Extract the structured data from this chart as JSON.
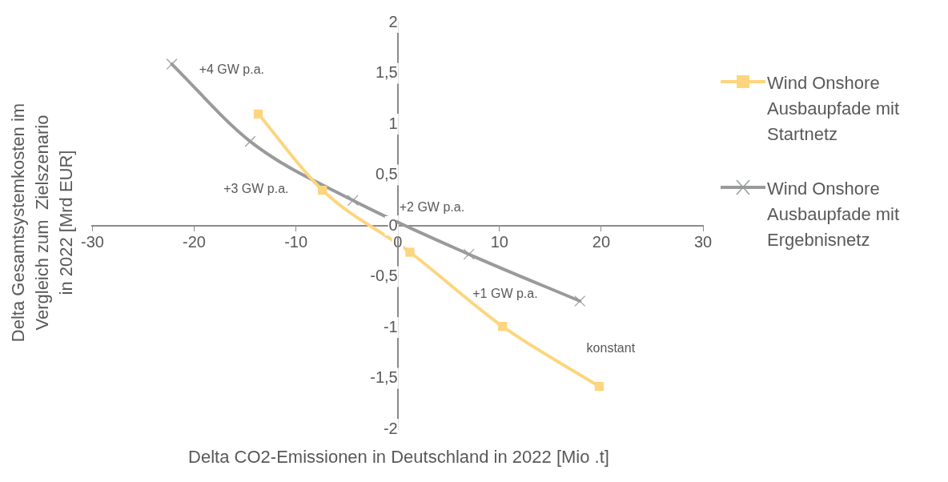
{
  "chart_data": {
    "type": "line",
    "xlabel": "Delta CO2-Emissionen in Deutschland in 2022 [Mio .t]",
    "ylabel": "Delta Gesamtsystemkosten im\nVergleich zum  Zielszenario\nin 2022 [Mrd EUR]",
    "xlim": [
      -30,
      30
    ],
    "xticks": [
      -30,
      -20,
      -10,
      0,
      10,
      20,
      30
    ],
    "ylim": [
      -2,
      2
    ],
    "yticks": [
      {
        "value": -2,
        "label": "-2"
      },
      {
        "value": -1.5,
        "label": "-1,5"
      },
      {
        "value": -1,
        "label": "-1"
      },
      {
        "value": -0.5,
        "label": "-0,5"
      },
      {
        "value": 0,
        "label": "0"
      },
      {
        "value": 0.5,
        "label": "0,5"
      },
      {
        "value": 1,
        "label": "1"
      },
      {
        "value": 1.5,
        "label": "1,5"
      },
      {
        "value": 2,
        "label": "2"
      }
    ],
    "series": [
      {
        "name": "Wind Onshore Ausbaupfade mit Startnetz",
        "color": "#fdd57e",
        "marker": "square",
        "x": [
          -13.7,
          -7.4,
          1.2,
          10.3,
          19.8
        ],
        "values": [
          1.1,
          0.35,
          -0.26,
          -0.99,
          -1.58
        ]
      },
      {
        "name": "Wind Onshore Ausbaupfade mit Ergebnisnetz",
        "color": "#999b9b",
        "marker": "cross",
        "x": [
          -22.2,
          -14.5,
          -4.4,
          7.0,
          17.9
        ],
        "values": [
          1.59,
          0.83,
          0.25,
          -0.28,
          -0.74
        ]
      }
    ],
    "annotations": [
      "+4 GW p.a.",
      "+3 GW p.a.",
      "+2 GW p.a.",
      "+1 GW p.a.",
      "konstant"
    ],
    "legend": "right"
  }
}
